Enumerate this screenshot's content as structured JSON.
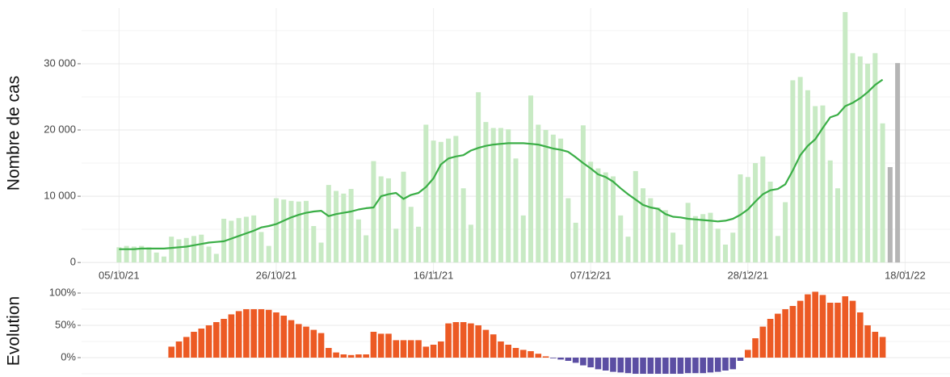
{
  "chart_data": [
    {
      "type": "bar",
      "y_label": "Nombre de cas",
      "x": [
        "05/10/21",
        "06/10/21",
        "07/10/21",
        "08/10/21",
        "09/10/21",
        "10/10/21",
        "11/10/21",
        "12/10/21",
        "13/10/21",
        "14/10/21",
        "15/10/21",
        "16/10/21",
        "17/10/21",
        "18/10/21",
        "19/10/21",
        "20/10/21",
        "21/10/21",
        "22/10/21",
        "23/10/21",
        "24/10/21",
        "25/10/21",
        "26/10/21",
        "27/10/21",
        "28/10/21",
        "29/10/21",
        "30/10/21",
        "31/10/21",
        "01/11/21",
        "02/11/21",
        "03/11/21",
        "04/11/21",
        "05/11/21",
        "06/11/21",
        "07/11/21",
        "08/11/21",
        "09/11/21",
        "10/11/21",
        "11/11/21",
        "12/11/21",
        "13/11/21",
        "14/11/21",
        "15/11/21",
        "16/11/21",
        "17/11/21",
        "18/11/21",
        "19/11/21",
        "20/11/21",
        "21/11/21",
        "22/11/21",
        "23/11/21",
        "24/11/21",
        "25/11/21",
        "26/11/21",
        "27/11/21",
        "28/11/21",
        "29/11/21",
        "30/11/21",
        "01/12/21",
        "02/12/21",
        "03/12/21",
        "04/12/21",
        "05/12/21",
        "06/12/21",
        "07/12/21",
        "08/12/21",
        "09/12/21",
        "10/12/21",
        "11/12/21",
        "12/12/21",
        "13/12/21",
        "14/12/21",
        "15/12/21",
        "16/12/21",
        "17/12/21",
        "18/12/21",
        "19/12/21",
        "20/12/21",
        "21/12/21",
        "22/12/21",
        "23/12/21",
        "24/12/21",
        "25/12/21",
        "26/12/21",
        "27/12/21",
        "28/12/21",
        "29/12/21",
        "30/12/21",
        "31/12/21",
        "01/01/22",
        "02/01/22",
        "03/01/22",
        "04/01/22",
        "05/01/22",
        "06/01/22",
        "07/01/22",
        "08/01/22",
        "09/01/22",
        "10/01/22",
        "11/01/22",
        "12/01/22",
        "13/01/22",
        "14/01/22",
        "15/01/22",
        "16/01/22",
        "17/01/22"
      ],
      "xlim": [
        "30/09/21",
        "24/01/22"
      ],
      "xticks": [
        "05/10/21",
        "26/10/21",
        "16/11/21",
        "07/12/21",
        "28/12/21",
        "18/01/22"
      ],
      "ylim": [
        -1200,
        38400
      ],
      "yticks": [
        0,
        {
          "value": 10000,
          "label": "10 000"
        },
        {
          "value": 20000,
          "label": "20 000"
        },
        {
          "value": 30000,
          "label": "30 000"
        }
      ],
      "minor_yticks": [
        5000,
        15000,
        25000,
        35000
      ],
      "grid": true,
      "series": [
        {
          "type": "bar",
          "color": "#c8eac4",
          "values": [
            2300,
            2500,
            2400,
            2500,
            2300,
            1500,
            900,
            3900,
            3500,
            3700,
            4000,
            4200,
            2400,
            1300,
            6600,
            6300,
            6700,
            6900,
            7100,
            4600,
            2500,
            9700,
            9500,
            9300,
            9200,
            9300,
            5500,
            3000,
            11700,
            10800,
            10400,
            11100,
            6500,
            4100,
            15300,
            13000,
            12700,
            5100,
            13700,
            8400,
            5400,
            20800,
            18400,
            18200,
            18700,
            19100,
            11200,
            5700,
            25700,
            21200,
            20300,
            20300,
            20100,
            15700,
            7100,
            25200,
            20800,
            20000,
            19300,
            18700,
            9700,
            6000,
            20700,
            15200,
            14200,
            13600,
            13000,
            7100,
            3900,
            13800,
            11200,
            9700,
            8300,
            7900,
            4500,
            2700,
            9000,
            7000,
            7300,
            7500,
            5100,
            2700,
            4500,
            13300,
            12900,
            15000,
            16000,
            12200,
            4000,
            9100,
            27500,
            28000,
            26000,
            23600,
            23700,
            15400,
            11200,
            37800,
            31600,
            31100,
            30000,
            31600,
            21000,
            null,
            null
          ]
        },
        {
          "type": "bar",
          "color": "#b5b5b5",
          "values": [
            null,
            null,
            null,
            null,
            null,
            null,
            null,
            null,
            null,
            null,
            null,
            null,
            null,
            null,
            null,
            null,
            null,
            null,
            null,
            null,
            null,
            null,
            null,
            null,
            null,
            null,
            null,
            null,
            null,
            null,
            null,
            null,
            null,
            null,
            null,
            null,
            null,
            null,
            null,
            null,
            null,
            null,
            null,
            null,
            null,
            null,
            null,
            null,
            null,
            null,
            null,
            null,
            null,
            null,
            null,
            null,
            null,
            null,
            null,
            null,
            null,
            null,
            null,
            null,
            null,
            null,
            null,
            null,
            null,
            null,
            null,
            null,
            null,
            null,
            null,
            null,
            null,
            null,
            null,
            null,
            null,
            null,
            null,
            null,
            null,
            null,
            null,
            null,
            null,
            null,
            null,
            null,
            null,
            null,
            null,
            null,
            null,
            null,
            null,
            null,
            null,
            null,
            null,
            14400,
            30100
          ]
        },
        {
          "type": "line",
          "color": "#3aae46",
          "values": [
            2000,
            2000,
            2000,
            2100,
            2100,
            2100,
            2100,
            2200,
            2300,
            2400,
            2600,
            2800,
            3000,
            3100,
            3200,
            3600,
            4000,
            4400,
            4800,
            5300,
            5500,
            5800,
            6300,
            6800,
            7200,
            7500,
            7700,
            7800,
            7000,
            7300,
            7500,
            7700,
            8000,
            8200,
            8300,
            10000,
            10300,
            10500,
            9600,
            10200,
            10500,
            11400,
            12700,
            14800,
            15700,
            16000,
            16200,
            16900,
            17300,
            17600,
            17800,
            17900,
            18000,
            18000,
            18000,
            17900,
            17800,
            17500,
            17200,
            17000,
            16700,
            15900,
            15000,
            14200,
            13300,
            12900,
            12200,
            11200,
            10300,
            9500,
            8700,
            8300,
            8100,
            7300,
            6900,
            6800,
            6600,
            6500,
            6400,
            6300,
            6200,
            6300,
            6600,
            7200,
            8000,
            9200,
            10300,
            10900,
            11100,
            11800,
            13900,
            16200,
            17600,
            18600,
            20300,
            21900,
            22300,
            23600,
            24100,
            24800,
            25700,
            26800,
            27600,
            null,
            null
          ]
        }
      ]
    },
    {
      "type": "bar",
      "y_label": "Evolution",
      "x": [
        "05/10/21",
        "06/10/21",
        "07/10/21",
        "08/10/21",
        "09/10/21",
        "10/10/21",
        "11/10/21",
        "12/10/21",
        "13/10/21",
        "14/10/21",
        "15/10/21",
        "16/10/21",
        "17/10/21",
        "18/10/21",
        "19/10/21",
        "20/10/21",
        "21/10/21",
        "22/10/21",
        "23/10/21",
        "24/10/21",
        "25/10/21",
        "26/10/21",
        "27/10/21",
        "28/10/21",
        "29/10/21",
        "30/10/21",
        "31/10/21",
        "01/11/21",
        "02/11/21",
        "03/11/21",
        "04/11/21",
        "05/11/21",
        "06/11/21",
        "07/11/21",
        "08/11/21",
        "09/11/21",
        "10/11/21",
        "11/11/21",
        "12/11/21",
        "13/11/21",
        "14/11/21",
        "15/11/21",
        "16/11/21",
        "17/11/21",
        "18/11/21",
        "19/11/21",
        "20/11/21",
        "21/11/21",
        "22/11/21",
        "23/11/21",
        "24/11/21",
        "25/11/21",
        "26/11/21",
        "27/11/21",
        "28/11/21",
        "29/11/21",
        "30/11/21",
        "01/12/21",
        "02/12/21",
        "03/12/21",
        "04/12/21",
        "05/12/21",
        "06/12/21",
        "07/12/21",
        "08/12/21",
        "09/12/21",
        "10/12/21",
        "11/12/21",
        "12/12/21",
        "13/12/21",
        "14/12/21",
        "15/12/21",
        "16/12/21",
        "17/12/21",
        "18/12/21",
        "19/12/21",
        "20/12/21",
        "21/12/21",
        "22/12/21",
        "23/12/21",
        "24/12/21",
        "25/12/21",
        "26/12/21",
        "27/12/21",
        "28/12/21",
        "29/12/21",
        "30/12/21",
        "31/12/21",
        "01/01/22",
        "02/01/22",
        "03/01/22",
        "04/01/22",
        "05/01/22",
        "06/01/22",
        "07/01/22",
        "08/01/22",
        "09/01/22",
        "10/01/22",
        "11/01/22",
        "12/01/22",
        "13/01/22",
        "14/01/22",
        "15/01/22",
        "16/01/22",
        "17/01/22"
      ],
      "xlim": [
        "30/09/21",
        "24/01/22"
      ],
      "ylim": [
        -30,
        110
      ],
      "yticks": [
        {
          "value": 0,
          "label": "0%"
        },
        {
          "value": 50,
          "label": "50%"
        },
        {
          "value": 100,
          "label": "100%"
        }
      ],
      "minor_yticks": [
        -25,
        25,
        75
      ],
      "grid": true,
      "positive_color": "#ec5a24",
      "negative_color": "#5b4ea3",
      "values": [
        null,
        null,
        null,
        null,
        null,
        null,
        null,
        17,
        25,
        32,
        40,
        45,
        50,
        55,
        60,
        67,
        72,
        75,
        75,
        75,
        74,
        70,
        65,
        58,
        52,
        48,
        43,
        38,
        15,
        8,
        5,
        4,
        5,
        5,
        40,
        37,
        37,
        27,
        27,
        27,
        27,
        17,
        20,
        25,
        53,
        55,
        55,
        53,
        50,
        43,
        36,
        25,
        20,
        15,
        12,
        10,
        6,
        2,
        -1,
        -3,
        -5,
        -8,
        -12,
        -15,
        -18,
        -20,
        -22,
        -23,
        -24,
        -25,
        -25,
        -25,
        -25,
        -25,
        -25,
        -25,
        -24,
        -24,
        -24,
        -23,
        -22,
        -20,
        -18,
        -5,
        12,
        30,
        48,
        60,
        68,
        75,
        80,
        88,
        98,
        102,
        97,
        85,
        85,
        95,
        88,
        70,
        50,
        40,
        32,
        null,
        null
      ]
    }
  ]
}
